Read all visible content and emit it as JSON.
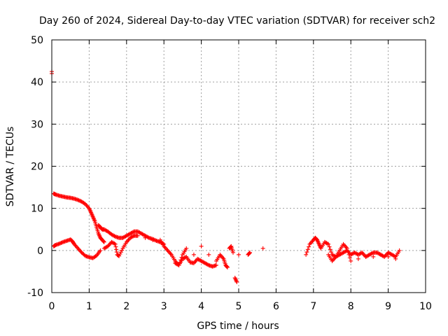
{
  "chart_data": {
    "type": "scatter",
    "title": "Day 260 of 2024, Sidereal Day-to-day VTEC variation (SDTVAR) for receiver sch2",
    "xlabel": "GPS time / hours",
    "ylabel": "SDTVAR / TECUs",
    "xlim": [
      0,
      10
    ],
    "ylim": [
      -10,
      50
    ],
    "xticks": [
      "0",
      "1",
      "2",
      "3",
      "4",
      "5",
      "6",
      "7",
      "8",
      "9",
      "10"
    ],
    "yticks": [
      "-10",
      "0",
      "10",
      "20",
      "30",
      "40",
      "50"
    ],
    "grid": true,
    "marker": "+",
    "color": "#ff0000",
    "series": [
      {
        "name": "SDTVAR",
        "x": [
          0.0,
          0.0,
          0.05,
          0.1,
          0.2,
          0.3,
          0.4,
          0.5,
          0.6,
          0.7,
          0.8,
          0.9,
          1.0,
          1.05,
          1.1,
          1.15,
          1.2,
          1.25,
          1.3,
          1.35,
          1.4,
          0.05,
          0.1,
          0.2,
          0.3,
          0.4,
          0.5,
          0.55,
          0.6,
          0.7,
          0.8,
          0.9,
          1.0,
          1.1,
          1.2,
          1.3,
          1.25,
          1.3,
          1.35,
          1.4,
          1.5,
          1.6,
          1.7,
          1.8,
          1.9,
          2.0,
          2.1,
          2.2,
          2.3,
          2.4,
          2.5,
          2.6,
          2.7,
          2.8,
          2.9,
          3.0,
          1.4,
          1.5,
          1.6,
          1.7,
          1.75,
          1.8,
          1.9,
          2.0,
          2.1,
          2.2,
          2.3,
          2.5,
          2.7,
          2.9,
          3.0,
          3.1,
          3.2,
          3.3,
          3.4,
          3.5,
          3.6,
          3.7,
          3.8,
          3.9,
          4.0,
          4.1,
          4.2,
          4.3,
          4.4,
          3.3,
          3.4,
          3.5,
          3.6,
          3.8,
          4.0,
          4.2,
          4.4,
          4.5,
          4.6,
          4.65,
          4.7,
          4.75,
          4.8,
          4.85,
          4.9,
          4.95,
          5.0,
          5.25,
          5.3,
          5.65,
          6.8,
          6.9,
          7.0,
          7.05,
          7.1,
          7.15,
          7.2,
          7.3,
          7.4,
          7.5,
          7.6,
          7.7,
          7.8,
          7.9,
          8.0,
          8.1,
          8.2,
          8.3,
          8.4,
          8.5,
          8.6,
          8.7,
          8.8,
          8.9,
          9.0,
          9.1,
          9.2,
          9.3,
          7.4,
          7.5,
          7.6,
          7.7,
          7.8,
          7.9,
          8.0,
          8.2,
          8.4,
          8.6,
          8.8,
          9.0,
          9.2
        ],
        "y": [
          42.5,
          42.0,
          13.5,
          13.3,
          13.0,
          12.8,
          12.6,
          12.5,
          12.3,
          12.0,
          11.6,
          11.0,
          10.0,
          9.0,
          8.0,
          7.0,
          5.5,
          4.0,
          3.0,
          2.5,
          2.0,
          1.0,
          1.3,
          1.6,
          2.0,
          2.3,
          2.6,
          2.2,
          1.5,
          0.5,
          -0.5,
          -1.3,
          -1.6,
          -1.8,
          -1.2,
          0.0,
          6.0,
          5.5,
          5.0,
          5.0,
          4.5,
          3.8,
          3.3,
          3.0,
          3.0,
          3.5,
          4.0,
          4.5,
          4.5,
          4.0,
          3.5,
          3.0,
          2.7,
          2.3,
          2.0,
          1.5,
          0.5,
          1.0,
          2.0,
          1.5,
          -1.0,
          -1.3,
          0.5,
          2.0,
          3.0,
          3.5,
          3.5,
          3.0,
          2.5,
          2.5,
          1.0,
          0.0,
          -1.0,
          -2.5,
          -3.5,
          -2.0,
          -1.5,
          -2.8,
          -3.0,
          -2.0,
          -2.5,
          -3.0,
          -3.5,
          -3.8,
          -3.5,
          -3.0,
          -3.5,
          -1.0,
          0.5,
          -1.0,
          1.0,
          -1.0,
          -2.5,
          -1.0,
          -2.0,
          -3.5,
          -4.0,
          0.5,
          1.0,
          -0.5,
          -6.5,
          -7.5,
          -1.0,
          -1.0,
          -0.5,
          0.5,
          -1.0,
          1.5,
          2.5,
          3.0,
          2.5,
          1.5,
          0.5,
          2.0,
          1.5,
          -1.0,
          -1.5,
          -1.0,
          -0.5,
          0.0,
          -1.0,
          -0.5,
          -1.0,
          -0.5,
          -1.5,
          -1.0,
          -0.5,
          -0.5,
          -1.0,
          -1.5,
          -0.5,
          -1.0,
          -1.5,
          0.0,
          -1.0,
          -2.5,
          -1.5,
          0.0,
          1.5,
          0.5,
          -2.5,
          -2.0,
          -1.5,
          -1.5,
          -1.0,
          -1.5,
          -2.0
        ]
      }
    ]
  }
}
